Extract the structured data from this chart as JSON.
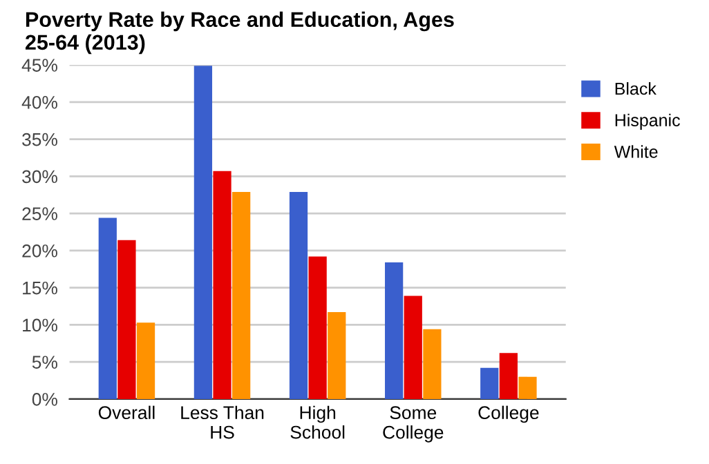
{
  "chart_data": {
    "type": "bar",
    "title": "Poverty Rate by Race and Education, Ages\n25-64 (2013)",
    "categories": [
      "Overall",
      "Less Than\nHS",
      "High\nSchool",
      "Some\nCollege",
      "College"
    ],
    "series": [
      {
        "name": "Black",
        "color": "#3a5fcd",
        "values": [
          24.4,
          44.9,
          27.9,
          18.4,
          4.2
        ]
      },
      {
        "name": "Hispanic",
        "color": "#e60000",
        "values": [
          21.4,
          30.7,
          19.2,
          13.9,
          6.2
        ]
      },
      {
        "name": "White",
        "color": "#ff9200",
        "values": [
          10.3,
          27.9,
          11.7,
          9.4,
          3.0
        ]
      }
    ],
    "ylim": [
      0,
      45
    ],
    "yticks": [
      {
        "value": 0,
        "label": "0%"
      },
      {
        "value": 5,
        "label": "5%"
      },
      {
        "value": 10,
        "label": "10%"
      },
      {
        "value": 15,
        "label": "15%"
      },
      {
        "value": 20,
        "label": "20%"
      },
      {
        "value": 25,
        "label": "25%"
      },
      {
        "value": 30,
        "label": "30%"
      },
      {
        "value": 35,
        "label": "35%"
      },
      {
        "value": 40,
        "label": "40%"
      },
      {
        "value": 45,
        "label": "45%"
      }
    ],
    "grid": "y",
    "legend": "right"
  }
}
